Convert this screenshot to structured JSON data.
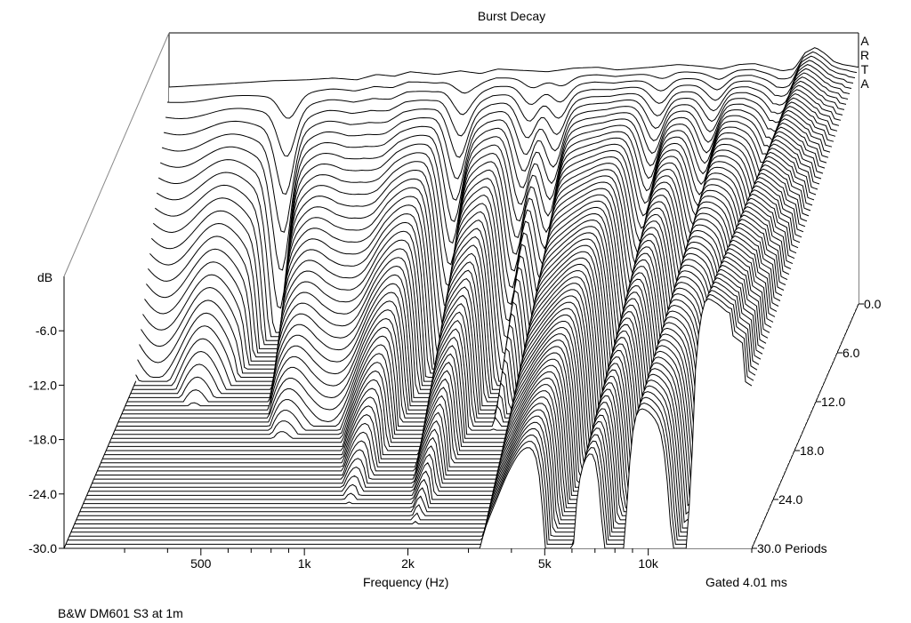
{
  "chart_data": {
    "type": "waterfall",
    "title": "Burst Decay",
    "xlabel": "Frequency (Hz)",
    "ylabel": "dB",
    "zlabel_unit": "Periods",
    "gated": "Gated 4.01 ms",
    "footnote": "B&W DM601 S3 at 1m",
    "brand": [
      "A",
      "R",
      "T",
      "A"
    ],
    "x_scale": "log",
    "x_range_hz": [
      200,
      20000
    ],
    "x_ticks": [
      {
        "value": 500,
        "label": "500"
      },
      {
        "value": 1000,
        "label": "1k"
      },
      {
        "value": 2000,
        "label": "2k"
      },
      {
        "value": 5000,
        "label": "5k"
      },
      {
        "value": 10000,
        "label": "10k"
      }
    ],
    "y_ticks": [
      {
        "value": -6,
        "label": "-6.0"
      },
      {
        "value": -12,
        "label": "-12.0"
      },
      {
        "value": -18,
        "label": "-18.0"
      },
      {
        "value": -24,
        "label": "-24.0"
      },
      {
        "value": -30,
        "label": "-30.0"
      }
    ],
    "z_ticks": [
      {
        "value": 0,
        "label": "0.0"
      },
      {
        "value": 6,
        "label": "6.0"
      },
      {
        "value": 12,
        "label": "12.0"
      },
      {
        "value": 18,
        "label": "18.0"
      },
      {
        "value": 24,
        "label": "24.0"
      },
      {
        "value": 30,
        "label": "30.0 Periods"
      }
    ],
    "slices_periods_step": 0.5,
    "ylim_db": [
      -30,
      0
    ],
    "initial_response": {
      "freq_hz": [
        200,
        300,
        400,
        500,
        600,
        700,
        800,
        900,
        1000,
        1200,
        1400,
        1600,
        1800,
        2000,
        2500,
        3000,
        3500,
        4000,
        5000,
        6000,
        7000,
        8000,
        9000,
        10000,
        11000,
        12000,
        13000,
        14000,
        15000,
        16000,
        17000,
        18000,
        20000
      ],
      "level_db": [
        -6.0,
        -5.6,
        -5.3,
        -5.2,
        -5.0,
        -5.2,
        -4.6,
        -4.8,
        -4.3,
        -4.6,
        -4.2,
        -4.5,
        -4.0,
        -4.1,
        -4.3,
        -3.9,
        -3.8,
        -4.1,
        -3.8,
        -3.5,
        -3.7,
        -4.0,
        -3.5,
        -3.4,
        -3.8,
        -4.2,
        -4.0,
        -2.2,
        -1.6,
        -2.3,
        -3.2,
        -3.5,
        -3.8
      ]
    },
    "decay_notches_hz": [
      450,
      1450,
      2300,
      2800,
      5500,
      8000,
      12500
    ],
    "decay_note": "Peaks around 14–16 kHz persist longest; narrow notches near 1.4 kHz, 2.3 kHz, 2.8 kHz, 5.5 kHz and 8 kHz."
  }
}
